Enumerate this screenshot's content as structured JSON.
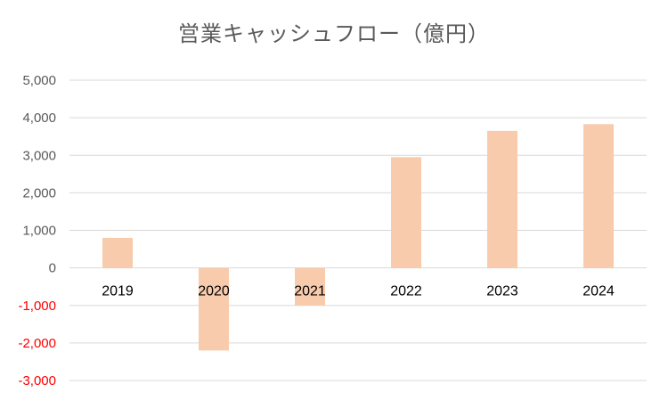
{
  "chart_data": {
    "type": "bar",
    "title": "営業キャッシュフロー（億円）",
    "xlabel": "",
    "ylabel": "",
    "categories": [
      "2019",
      "2020",
      "2021",
      "2022",
      "2023",
      "2024"
    ],
    "values": [
      800,
      -2200,
      -1000,
      2950,
      3650,
      3830
    ],
    "ylim": [
      -3000,
      5000
    ],
    "yticks": [
      5000,
      4000,
      3000,
      2000,
      1000,
      0,
      -1000,
      -2000,
      -3000
    ],
    "ytick_labels": [
      "5,000",
      "4,000",
      "3,000",
      "2,000",
      "1,000",
      "0",
      "-1,000",
      "-2,000",
      "-3,000"
    ],
    "grid": true,
    "legend": "none",
    "colors": {
      "bar": "#F8CBAD",
      "positive_tick": "#595959",
      "negative_tick": "#FF0000",
      "grid": "#D9D9D9",
      "title": "#595959"
    }
  }
}
